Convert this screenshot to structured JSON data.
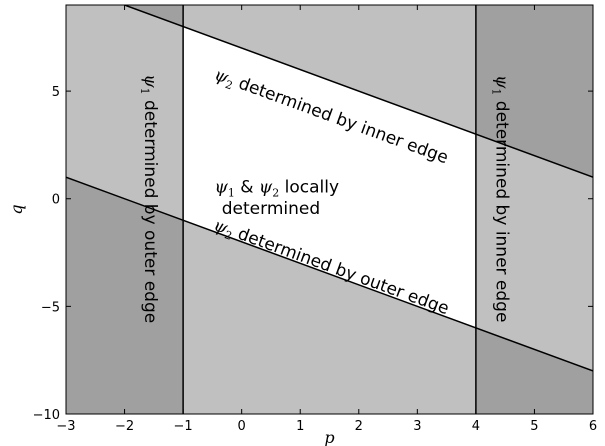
{
  "chart_data": {
    "type": "area",
    "xlabel": "p",
    "ylabel": "q",
    "xlim": [
      -3,
      6
    ],
    "ylim": [
      -10,
      9
    ],
    "xticks": [
      -3,
      -2,
      -1,
      0,
      1,
      2,
      3,
      4,
      5,
      6
    ],
    "yticks": [
      -10,
      -5,
      0,
      5
    ],
    "grid": false,
    "colors": {
      "light": "#c0c0c0",
      "dark": "#a0a0a0",
      "white": "#ffffff",
      "line": "#000000"
    },
    "vertical_lines": [
      -1,
      4
    ],
    "lines": [
      {
        "name": "upper",
        "equation": "q = 7 - p",
        "x": [
          -3,
          6
        ],
        "y": [
          10,
          1
        ]
      },
      {
        "name": "lower",
        "equation": "q = -p - 2",
        "x": [
          -3,
          6
        ],
        "y": [
          1,
          -8
        ]
      }
    ],
    "annotations": [
      {
        "id": "inner",
        "sym": "ψ",
        "sub": "2",
        "text": "determined by inner edge",
        "x": 1.5,
        "y": 3.6,
        "angle_deg": 20
      },
      {
        "id": "outer",
        "sym": "ψ",
        "sub": "2",
        "text": "determined by outer edge",
        "x": 1.5,
        "y": -3.4,
        "angle_deg": 20
      },
      {
        "id": "left",
        "sym": "ψ",
        "sub": "1",
        "text": "determined by outer edge",
        "x": -1.65,
        "y": 0,
        "angle_deg": 90
      },
      {
        "id": "right",
        "sym": "ψ",
        "sub": "1",
        "text": "determined by inner edge",
        "x": 4.35,
        "y": 0,
        "angle_deg": 90
      },
      {
        "id": "center_line1",
        "sym1": "ψ",
        "sub1": "1",
        "amp": "&",
        "sym2": "ψ",
        "sub2": "2",
        "text": "locally",
        "x": 0.6,
        "y": 0.3
      },
      {
        "id": "center_line2",
        "text": "determined",
        "x": 0.5,
        "y": -0.7
      }
    ]
  }
}
